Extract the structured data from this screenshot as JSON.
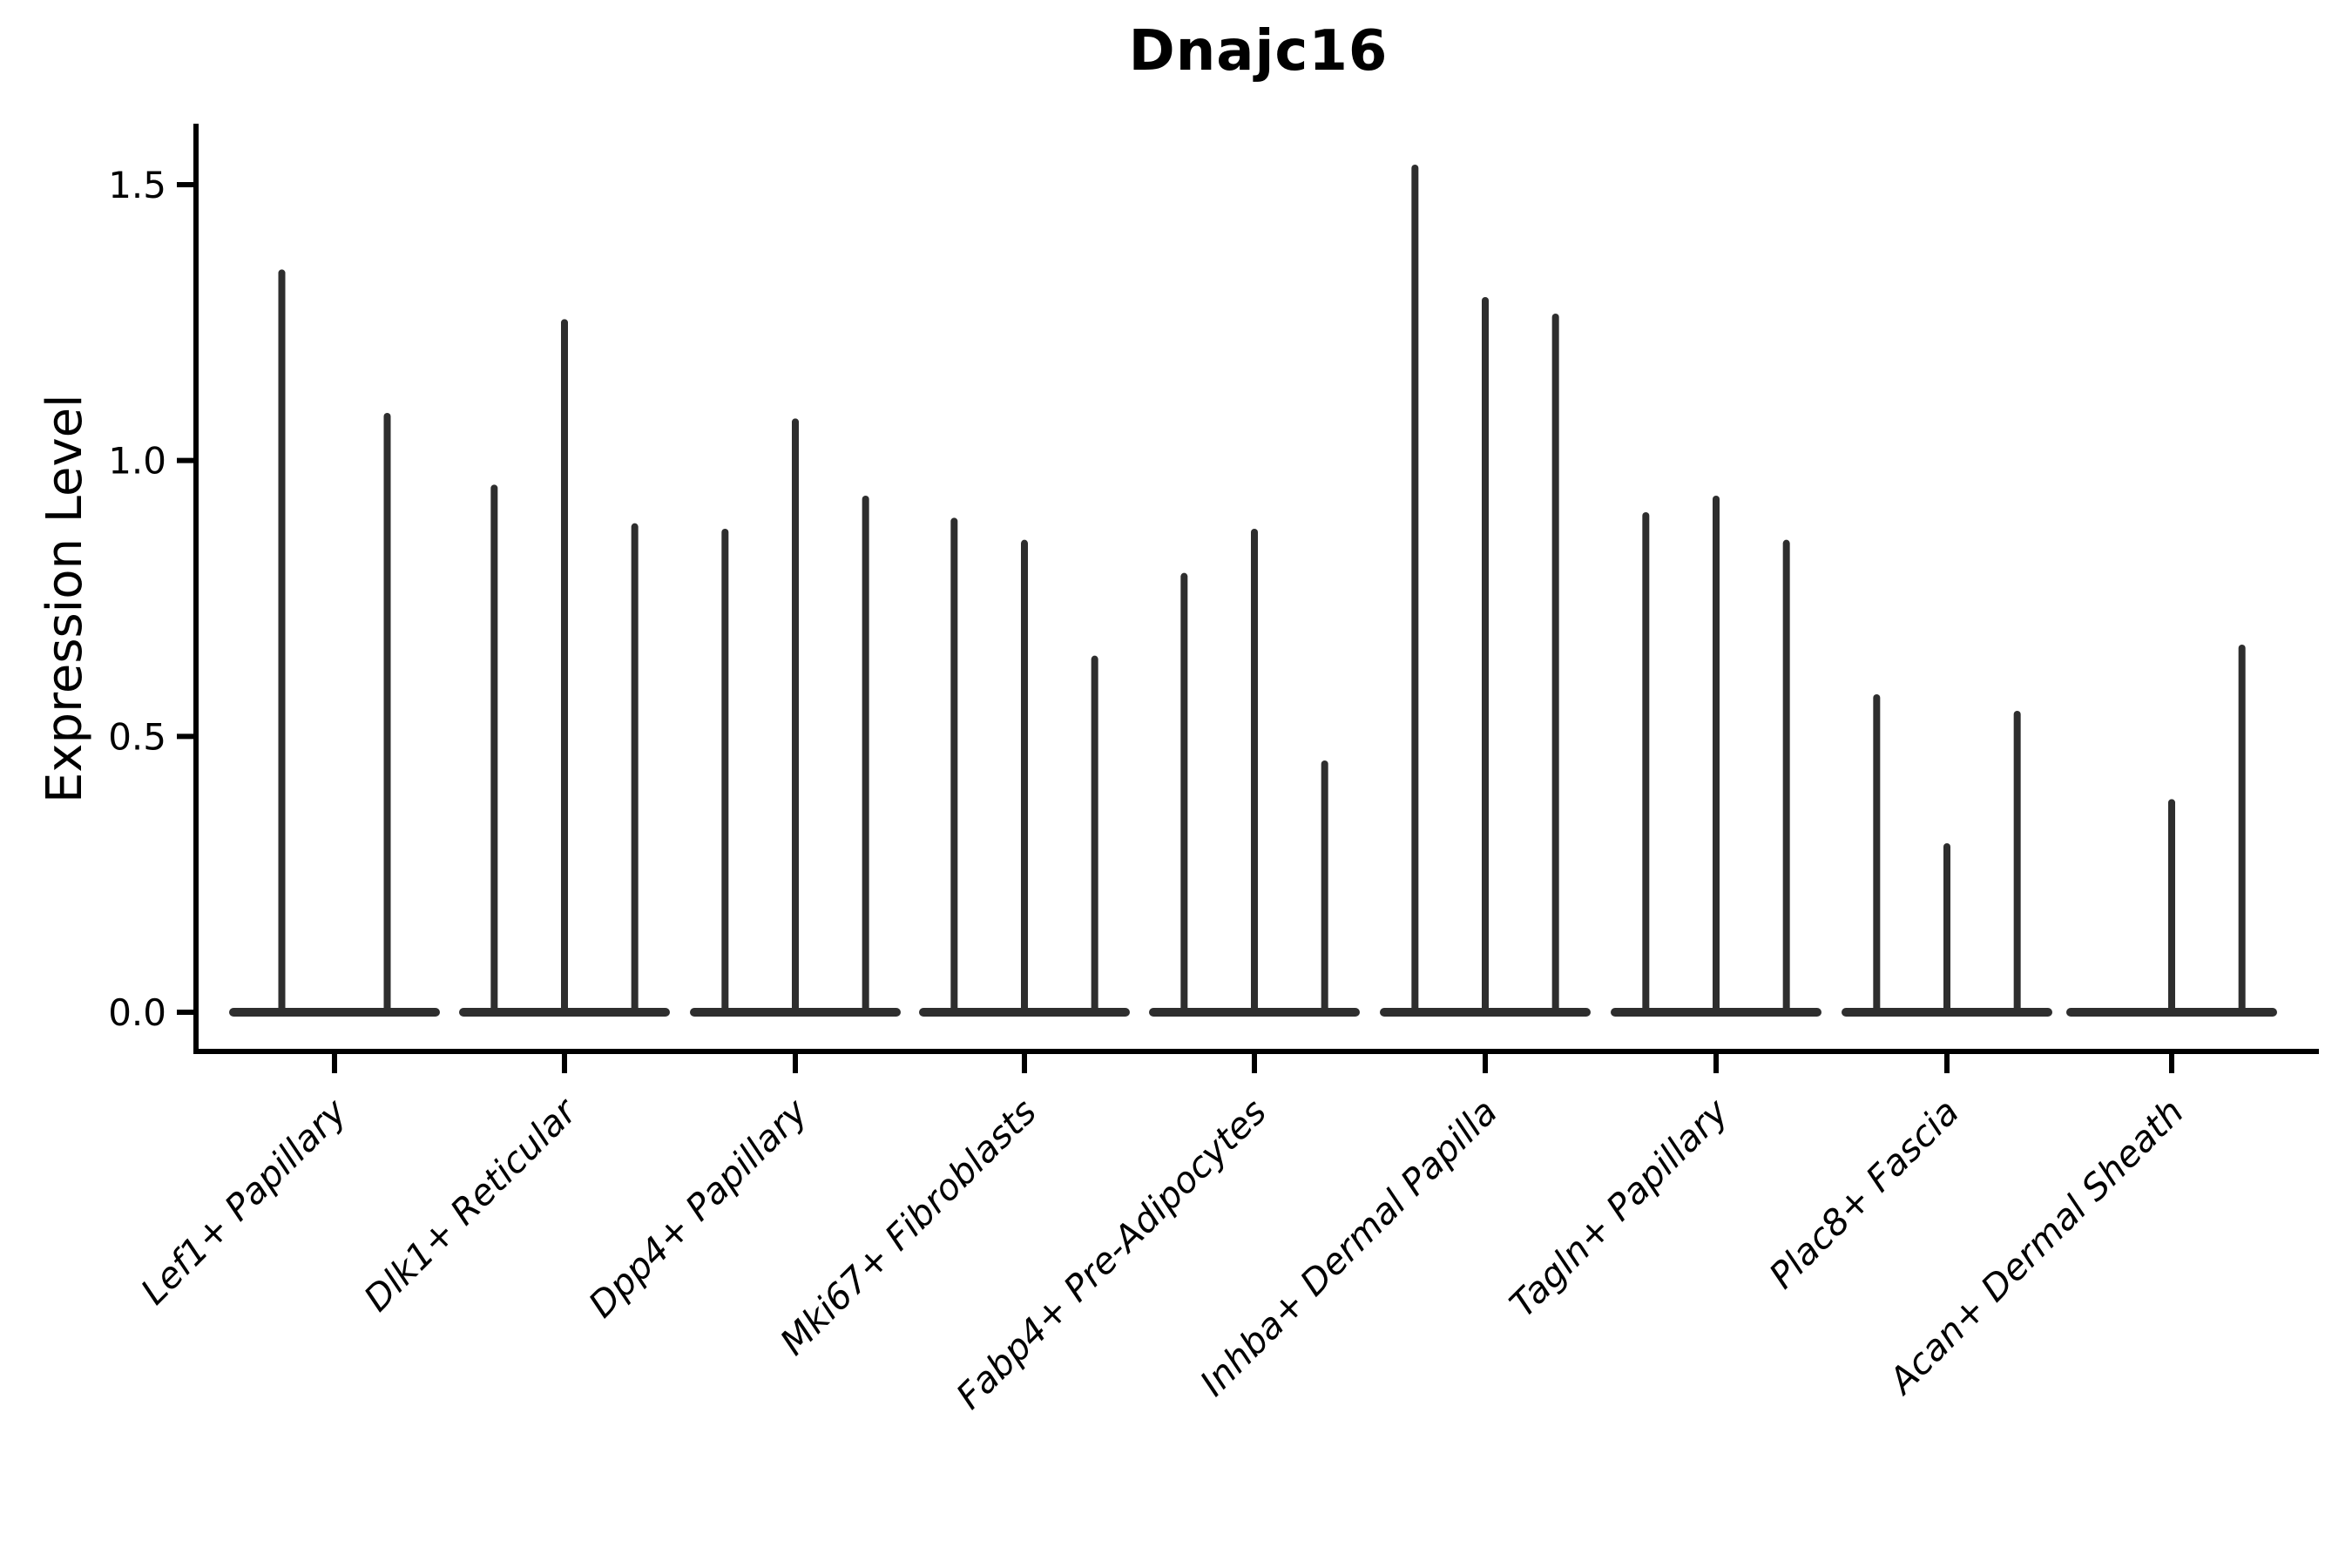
{
  "figure": {
    "title": "Dnajc16",
    "y_axis_label": "Expression Level",
    "colors": {
      "violin": "#2e2e2e",
      "axis": "#000000",
      "text": "#000000",
      "background": "#ffffff"
    }
  },
  "chart_data": {
    "type": "violin",
    "title": "Dnajc16",
    "xlabel": "",
    "ylabel": "Expression Level",
    "ylim": [
      0,
      1.62
    ],
    "yticks": [
      0.0,
      0.5,
      1.0,
      1.5
    ],
    "ytick_labels": [
      "0.0",
      "0.5",
      "1.0",
      "1.5"
    ],
    "x_tick_rotation": 45,
    "legend": "none",
    "grid": false,
    "description": "Narrow violin plot (expression mostly zero with thin spikes to max expression) of gene Dnajc16 across fibroblast cell-type groups; each group contains 2-3 violins whose spikes reach the listed peak expression levels; zero means a flat violin at baseline.",
    "categories": [
      "Lef1+ Papillary",
      "Dlk1+ Reticular",
      "Dpp4+ Papillary",
      "Mki67+ Fibroblasts",
      "Fabp4+ Pre-Adipocytes",
      "Inhba+ Dermal Papilla",
      "Tagln+ Papillary",
      "Plac8+ Fascia",
      "Acan+ Dermal Sheath"
    ],
    "groups": [
      {
        "category": "Lef1+ Papillary",
        "peak_expression": [
          1.34,
          1.08
        ]
      },
      {
        "category": "Dlk1+ Reticular",
        "peak_expression": [
          0.95,
          1.25,
          0.88
        ]
      },
      {
        "category": "Dpp4+ Papillary",
        "peak_expression": [
          0.87,
          1.07,
          0.93
        ]
      },
      {
        "category": "Mki67+ Fibroblasts",
        "peak_expression": [
          0.89,
          0.85,
          0.64
        ]
      },
      {
        "category": "Fabp4+ Pre-Adipocytes",
        "peak_expression": [
          0.79,
          0.87,
          0.45
        ]
      },
      {
        "category": "Inhba+ Dermal Papilla",
        "peak_expression": [
          1.53,
          1.29,
          1.26
        ]
      },
      {
        "category": "Tagln+ Papillary",
        "peak_expression": [
          0.9,
          0.93,
          0.85
        ]
      },
      {
        "category": "Plac8+ Fascia",
        "peak_expression": [
          0.57,
          0.3,
          0.54
        ]
      },
      {
        "category": "Acan+ Dermal Sheath",
        "peak_expression": [
          0.0,
          0.38,
          0.66
        ]
      }
    ]
  }
}
